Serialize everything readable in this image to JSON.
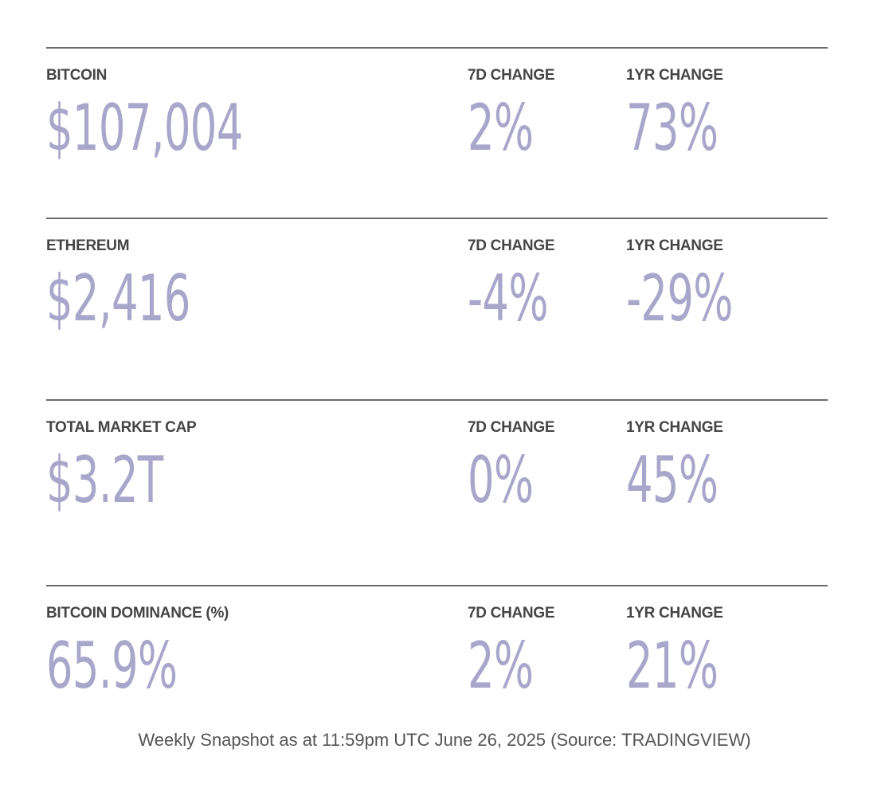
{
  "rows": [
    {
      "name": "BITCOIN",
      "value": "$107,004",
      "change_7d_label": "7D CHANGE",
      "change_7d": "2%",
      "change_1yr_label": "1YR CHANGE",
      "change_1yr": "73%"
    },
    {
      "name": "ETHEREUM",
      "value": "$2,416",
      "change_7d_label": "7D CHANGE",
      "change_7d": "-4%",
      "change_1yr_label": "1YR CHANGE",
      "change_1yr": "-29%"
    },
    {
      "name": "TOTAL MARKET CAP",
      "value": "$3.2T",
      "change_7d_label": "7D CHANGE",
      "change_7d": "0%",
      "change_1yr_label": "1YR CHANGE",
      "change_1yr": "45%"
    },
    {
      "name": "BITCOIN DOMINANCE (%)",
      "value": "65.9%",
      "change_7d_label": "7D CHANGE",
      "change_7d": "2%",
      "change_1yr_label": "1YR CHANGE",
      "change_1yr": "21%"
    }
  ],
  "footer": "Weekly Snapshot as at 11:59pm UTC June 26, 2025 (Source: TRADINGVIEW)"
}
